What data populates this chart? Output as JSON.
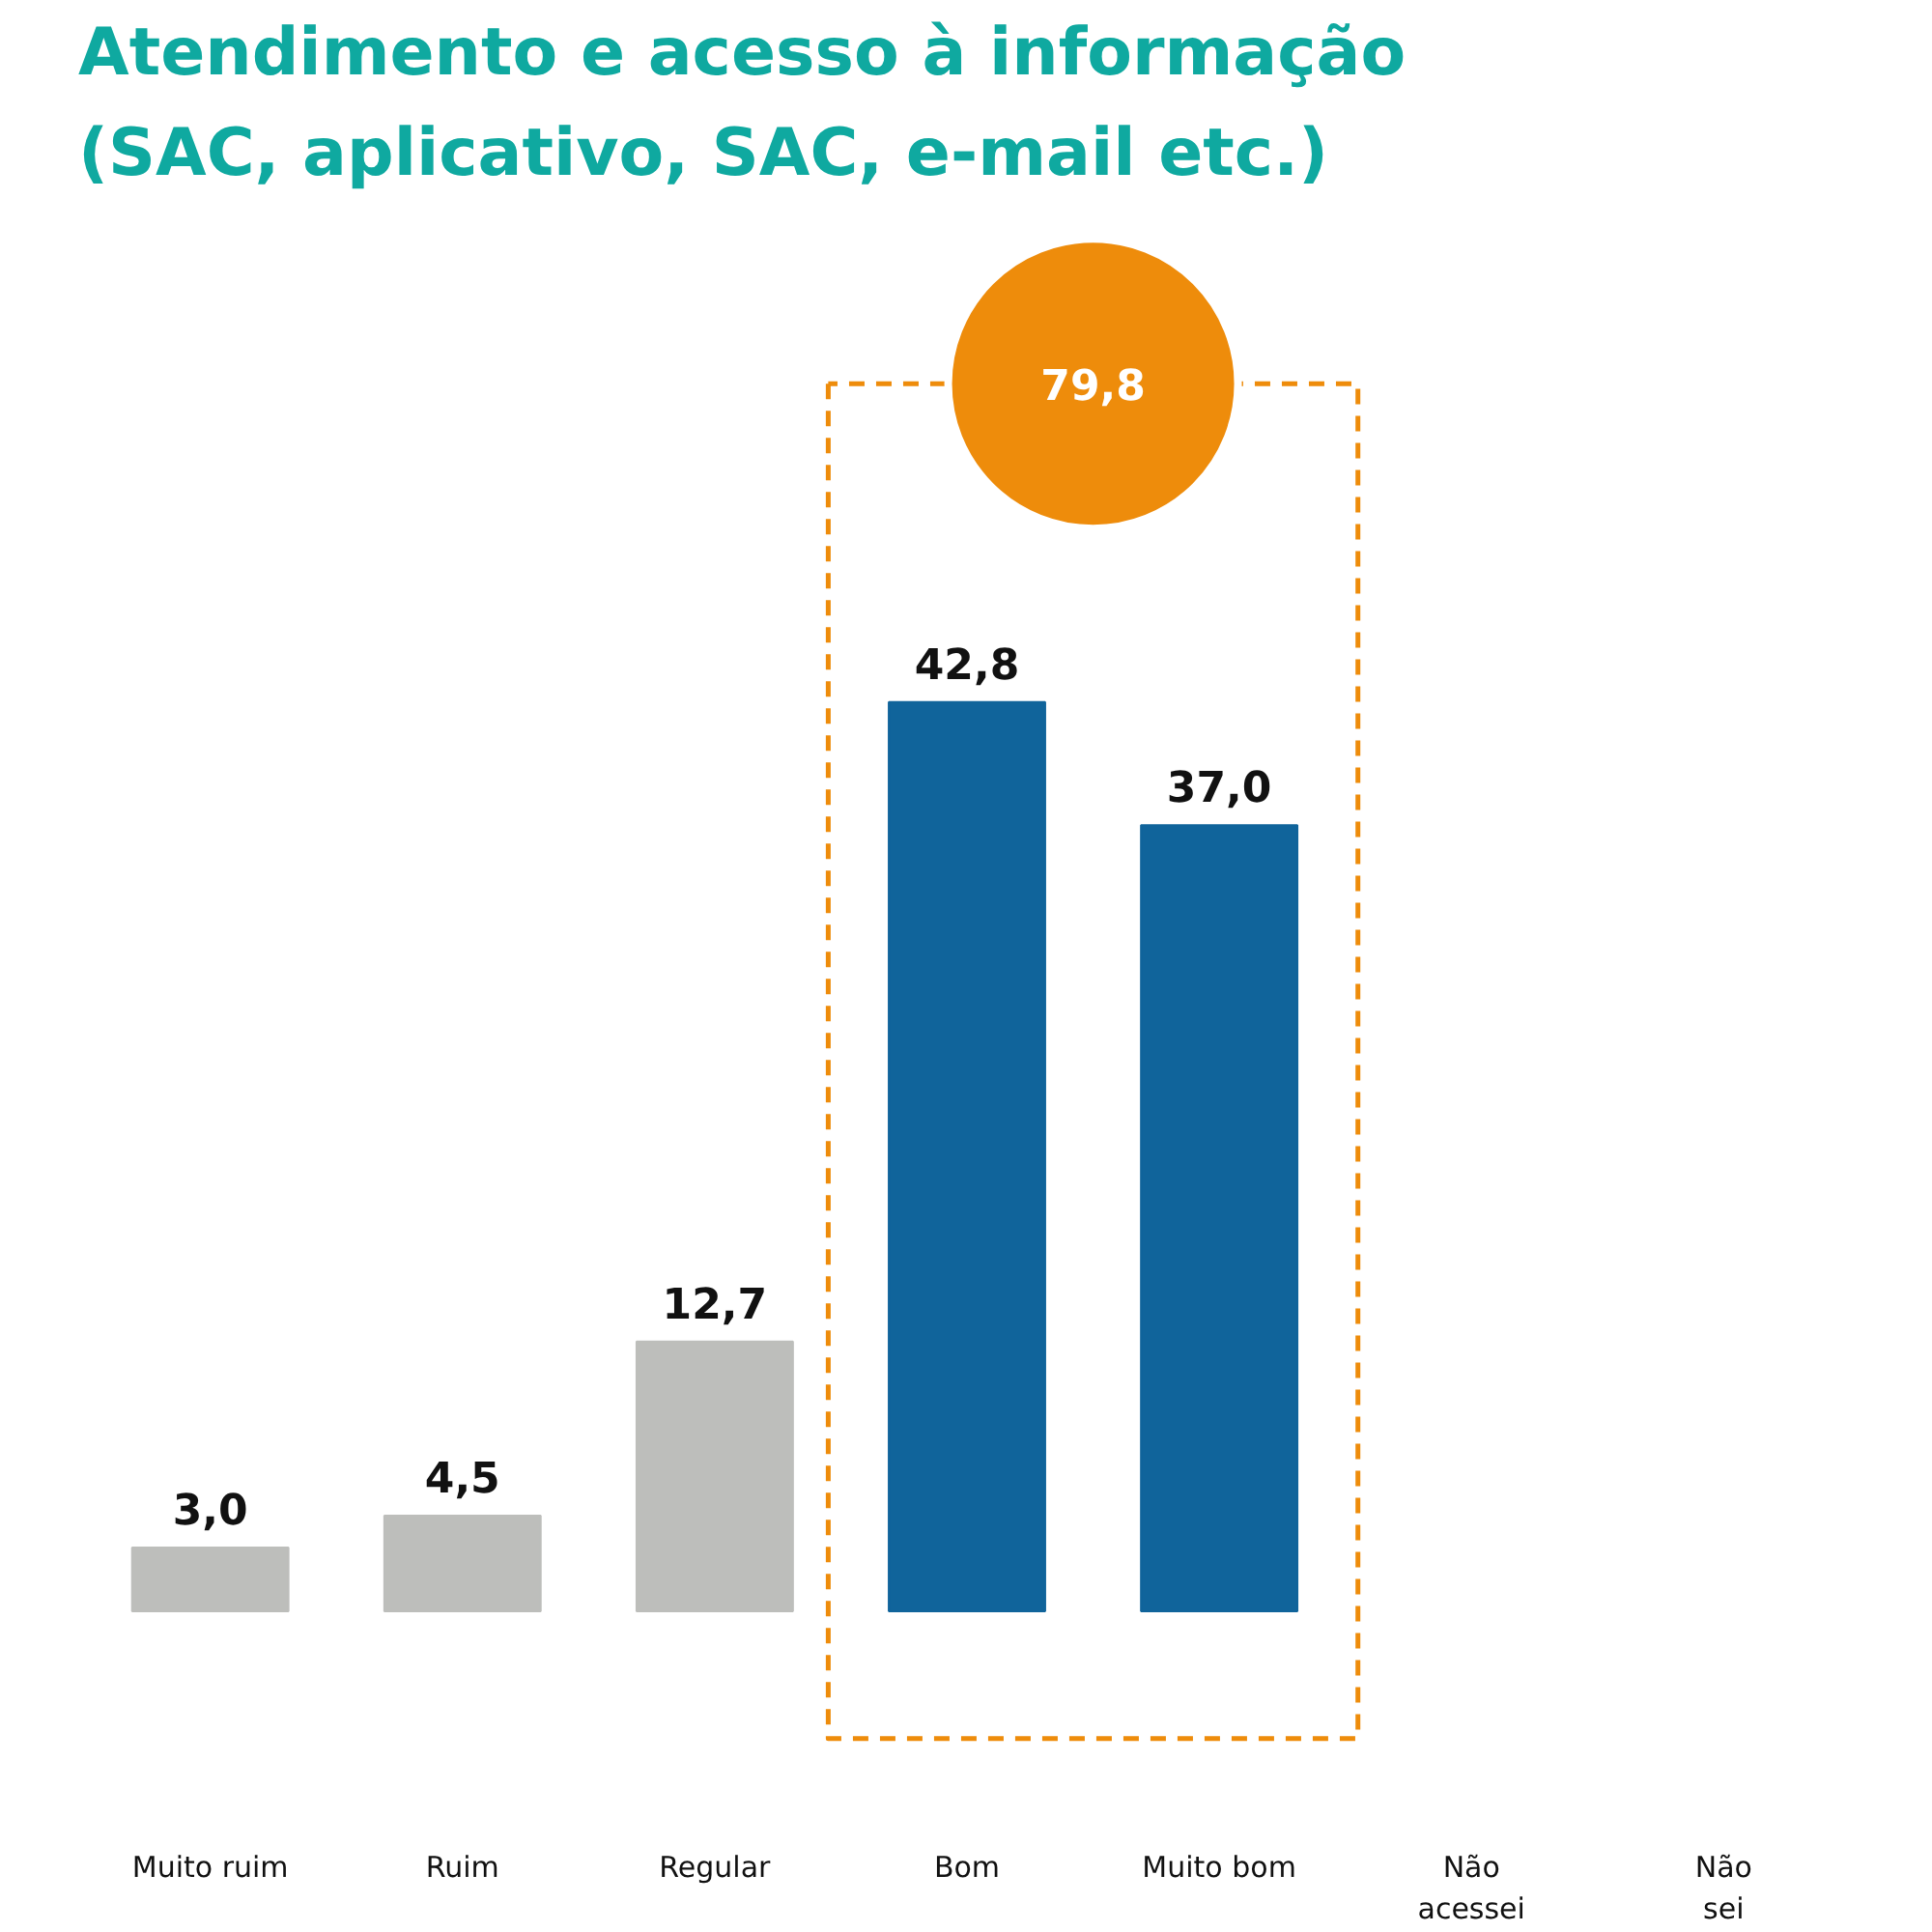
{
  "chart_data": {
    "type": "bar",
    "title": "Atendimento e acesso à informação\n(SAC, aplicativo, SAC, e-mail etc.)",
    "categories": [
      "Muito ruim",
      "Ruim",
      "Regular",
      "Bom",
      "Muito bom",
      "Não\nacessei",
      "Não\nsei"
    ],
    "values": [
      3.0,
      4.5,
      12.7,
      42.8,
      37.0,
      null,
      null
    ],
    "colors": [
      "#bdbebb",
      "#bdbebb",
      "#bdbebb",
      "#10649b",
      "#10649b",
      "#bdbebb",
      "#bdbebb"
    ],
    "value_labels": [
      "3,0",
      "4,5",
      "12,7",
      "42,8",
      "37,0",
      null,
      null
    ],
    "annotations": [
      "79,8"
    ]
  }
}
